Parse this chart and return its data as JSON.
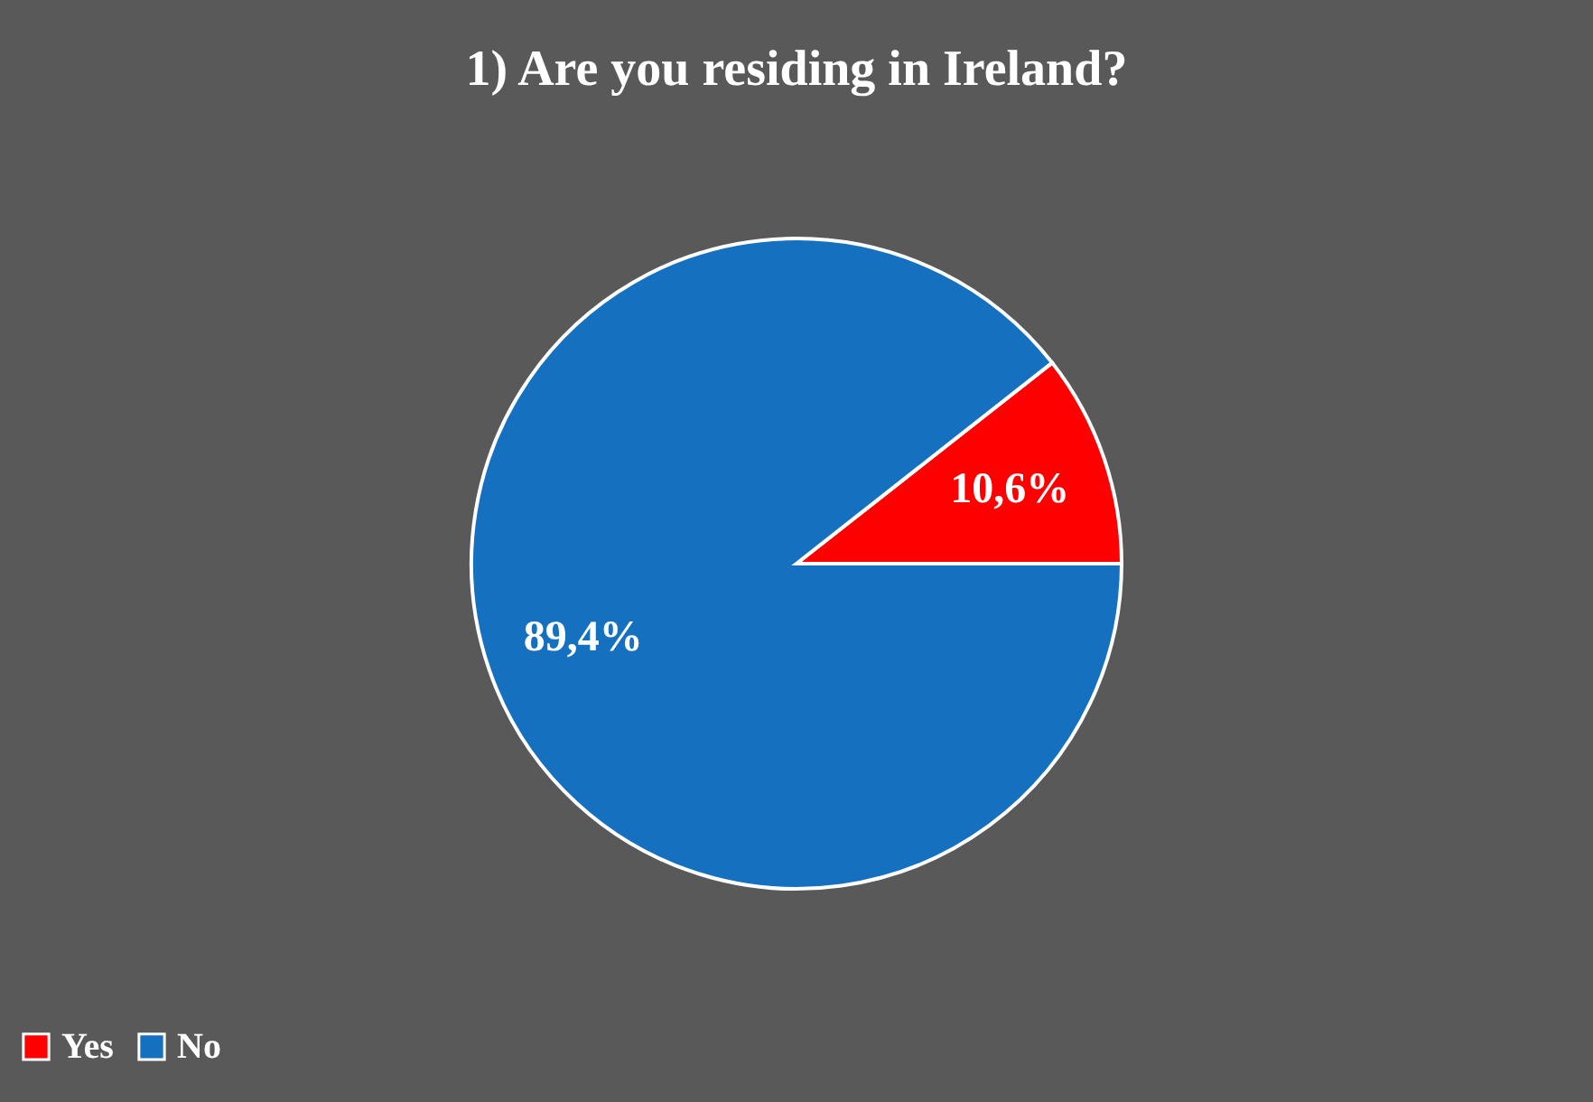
{
  "chart_data": {
    "type": "pie",
    "title": "1) Are you residing in Ireland?",
    "categories": [
      "Yes",
      "No"
    ],
    "values": [
      10.6,
      89.4
    ],
    "colors": [
      "#ff0000",
      "#1670c0"
    ],
    "value_labels": [
      "10,6%",
      "89,4%"
    ],
    "legend": "bottom"
  }
}
